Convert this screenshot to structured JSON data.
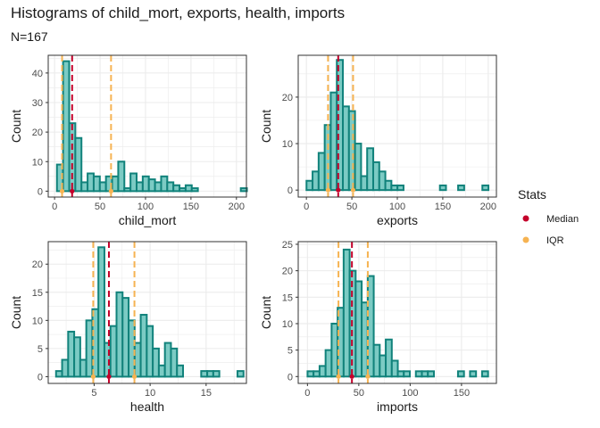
{
  "title": "Histograms of child_mort, exports, health, imports",
  "subtitle": "N=167",
  "colors": {
    "bar_fill": "#7ccbc4",
    "bar_stroke": "#11827b",
    "median": "#c4002a",
    "iqr": "#f6b352",
    "grid": "#ebebeb",
    "panel_border": "#333333"
  },
  "legend": {
    "title": "Stats",
    "position": "right",
    "items": [
      {
        "label": "Median",
        "color": "#c4002a"
      },
      {
        "label": "IQR",
        "color": "#f6b352"
      }
    ]
  },
  "chart_data": [
    {
      "type": "bar",
      "variable": "child_mort",
      "xlabel": "child_mort",
      "ylabel": "Count",
      "xlim": [
        -7,
        211
      ],
      "ylim": [
        -2,
        46
      ],
      "xticks": [
        0,
        50,
        100,
        150,
        200
      ],
      "yticks": [
        0,
        10,
        20,
        30,
        40
      ],
      "bin_width": 6.74,
      "bins_start": 2.6,
      "counts": [
        9,
        44,
        23,
        18,
        3,
        6,
        5,
        3,
        5,
        5,
        10,
        1,
        6,
        3,
        5,
        4,
        3,
        5,
        3,
        2,
        1,
        2,
        1,
        0,
        0,
        0,
        0,
        0,
        0,
        0,
        1
      ],
      "median": 19.3,
      "iqr": [
        8.25,
        62.1
      ]
    },
    {
      "type": "bar",
      "variable": "exports",
      "xlabel": "exports",
      "ylabel": "Count",
      "xlim": [
        -9,
        209
      ],
      "ylim": [
        -1.5,
        29
      ],
      "xticks": [
        0,
        50,
        100,
        150,
        200
      ],
      "yticks": [
        0,
        10,
        20
      ],
      "bin_width": 6.67,
      "bins_start": 0.11,
      "counts": [
        2,
        4,
        8,
        14,
        21,
        28,
        18,
        17,
        10,
        3,
        9,
        6,
        4,
        2,
        1,
        1,
        0,
        0,
        0,
        0,
        0,
        0,
        1,
        0,
        0,
        1,
        0,
        0,
        0,
        1
      ],
      "median": 35,
      "iqr": [
        23.8,
        51.35
      ]
    },
    {
      "type": "bar",
      "variable": "health",
      "xlabel": "health",
      "ylabel": "Count",
      "xlim": [
        0.9,
        18.6
      ],
      "ylim": [
        -1.2,
        24
      ],
      "xticks": [
        5,
        10,
        15
      ],
      "yticks": [
        0,
        5,
        10,
        15,
        20
      ],
      "bin_width": 0.54,
      "bins_start": 1.6,
      "counts": [
        1,
        3,
        8,
        7,
        3,
        10,
        12,
        23,
        6,
        9,
        15,
        14,
        10,
        6,
        11,
        9,
        5,
        2,
        6,
        5,
        2,
        0,
        0,
        0,
        1,
        1,
        1,
        0,
        0,
        0,
        1
      ],
      "median": 6.32,
      "iqr": [
        4.92,
        8.6
      ]
    },
    {
      "type": "bar",
      "variable": "imports",
      "xlabel": "imports",
      "ylabel": "Count",
      "xlim": [
        -9,
        184
      ],
      "ylim": [
        -1.3,
        25.5
      ],
      "xticks": [
        0,
        50,
        100,
        150
      ],
      "yticks": [
        0,
        5,
        10,
        15,
        20,
        25
      ],
      "bin_width": 5.86,
      "bins_start": 0.07,
      "counts": [
        1,
        1,
        2,
        5,
        10,
        13,
        24,
        20,
        18,
        14,
        19,
        6,
        4,
        7,
        3,
        1,
        1,
        0,
        1,
        1,
        1,
        0,
        0,
        0,
        0,
        1,
        0,
        1,
        0,
        1
      ],
      "median": 43.3,
      "iqr": [
        30.2,
        58.75
      ]
    }
  ]
}
